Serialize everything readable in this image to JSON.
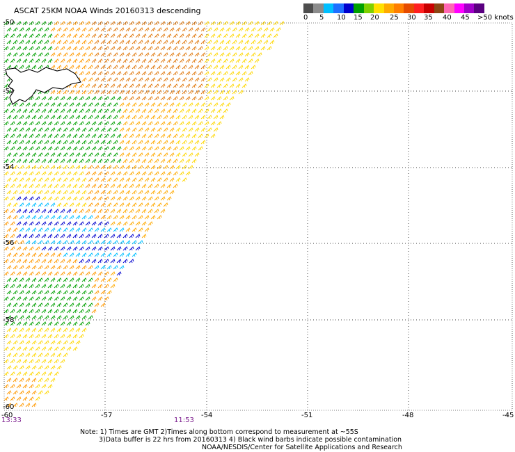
{
  "title": "ASCAT 25KM NOAA Winds 20160313 descending",
  "colorbar": {
    "colors": [
      "#4d4d4d",
      "#8c8c8c",
      "#00bfff",
      "#1e6fff",
      "#0000cd",
      "#00a000",
      "#7fd000",
      "#ffe000",
      "#ffaa00",
      "#ff7f00",
      "#e64b00",
      "#ff2020",
      "#c80000",
      "#8b4513",
      "#ff66b3",
      "#ff00ff",
      "#a000c8",
      "#5a0080"
    ],
    "labels": [
      "0",
      "5",
      "10",
      "15",
      "20",
      "25",
      "30",
      "35",
      "40",
      "45",
      ">50 knots"
    ]
  },
  "axes": {
    "lon_labels": [
      "-60",
      "-57",
      "-54",
      "-51",
      "-48",
      "-45"
    ],
    "lat_labels": [
      "-50",
      "-52",
      "-54",
      "-56",
      "-58",
      "-60"
    ]
  },
  "times": [
    "13:33",
    "11:53"
  ],
  "notes": [
    "Note: 1) Times are GMT 2)Times along bottom correspond to measurement at ~55S",
    "3)Data buffer is 22 hrs from 20160313 4) Black wind barbs indicate possible contamination",
    "NOAA/NESDIS/Center for Satellite Applications and Research"
  ]
}
